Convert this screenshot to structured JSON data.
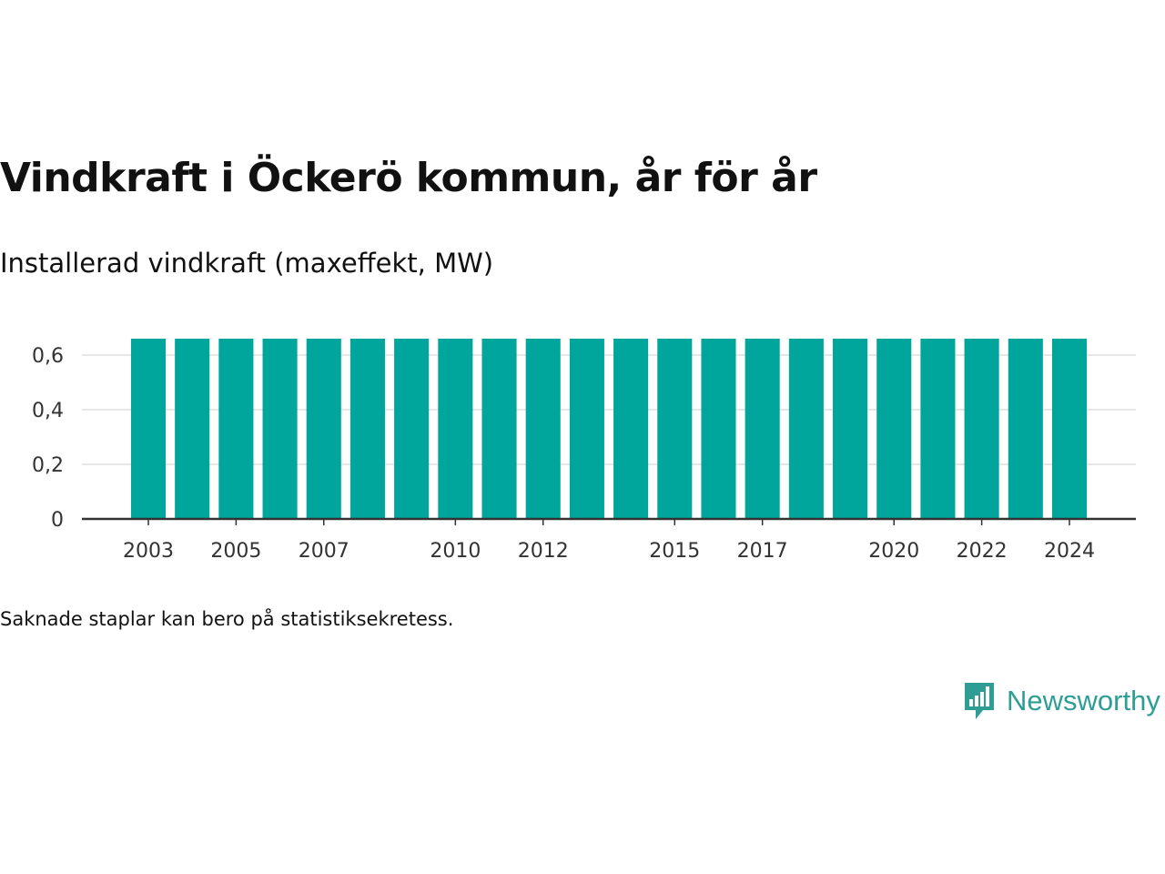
{
  "title": "Vindkraft i Öckerö kommun, år för år",
  "subtitle": "Installerad vindkraft (maxeffekt, MW)",
  "note": "Saknade staplar kan bero på statistiksekretess.",
  "brand": {
    "name": "Newsworthy",
    "icon": "newsworthy-logo-icon",
    "color": "#2e9e94"
  },
  "colors": {
    "bar": "#00a59b",
    "grid": "#dddddd",
    "axis": "#333333"
  },
  "chart_data": {
    "type": "bar",
    "categories": [
      "2003",
      "2004",
      "2005",
      "2006",
      "2007",
      "2008",
      "2009",
      "2010",
      "2011",
      "2012",
      "2013",
      "2014",
      "2015",
      "2016",
      "2017",
      "2018",
      "2019",
      "2020",
      "2021",
      "2022",
      "2023",
      "2024"
    ],
    "values": [
      0.66,
      0.66,
      0.66,
      0.66,
      0.66,
      0.66,
      0.66,
      0.66,
      0.66,
      0.66,
      0.66,
      0.66,
      0.66,
      0.66,
      0.66,
      0.66,
      0.66,
      0.66,
      0.66,
      0.66,
      0.66,
      0.66
    ],
    "x_tick_labels": [
      "2003",
      "2005",
      "2007",
      "2010",
      "2012",
      "2015",
      "2017",
      "2020",
      "2022",
      "2024"
    ],
    "y_ticks": [
      0,
      0.2,
      0.4,
      0.6
    ],
    "y_tick_labels": [
      "0",
      "0,2",
      "0,4",
      "0,6"
    ],
    "ylim": [
      0,
      0.66
    ],
    "grid": true,
    "legend": "none"
  }
}
